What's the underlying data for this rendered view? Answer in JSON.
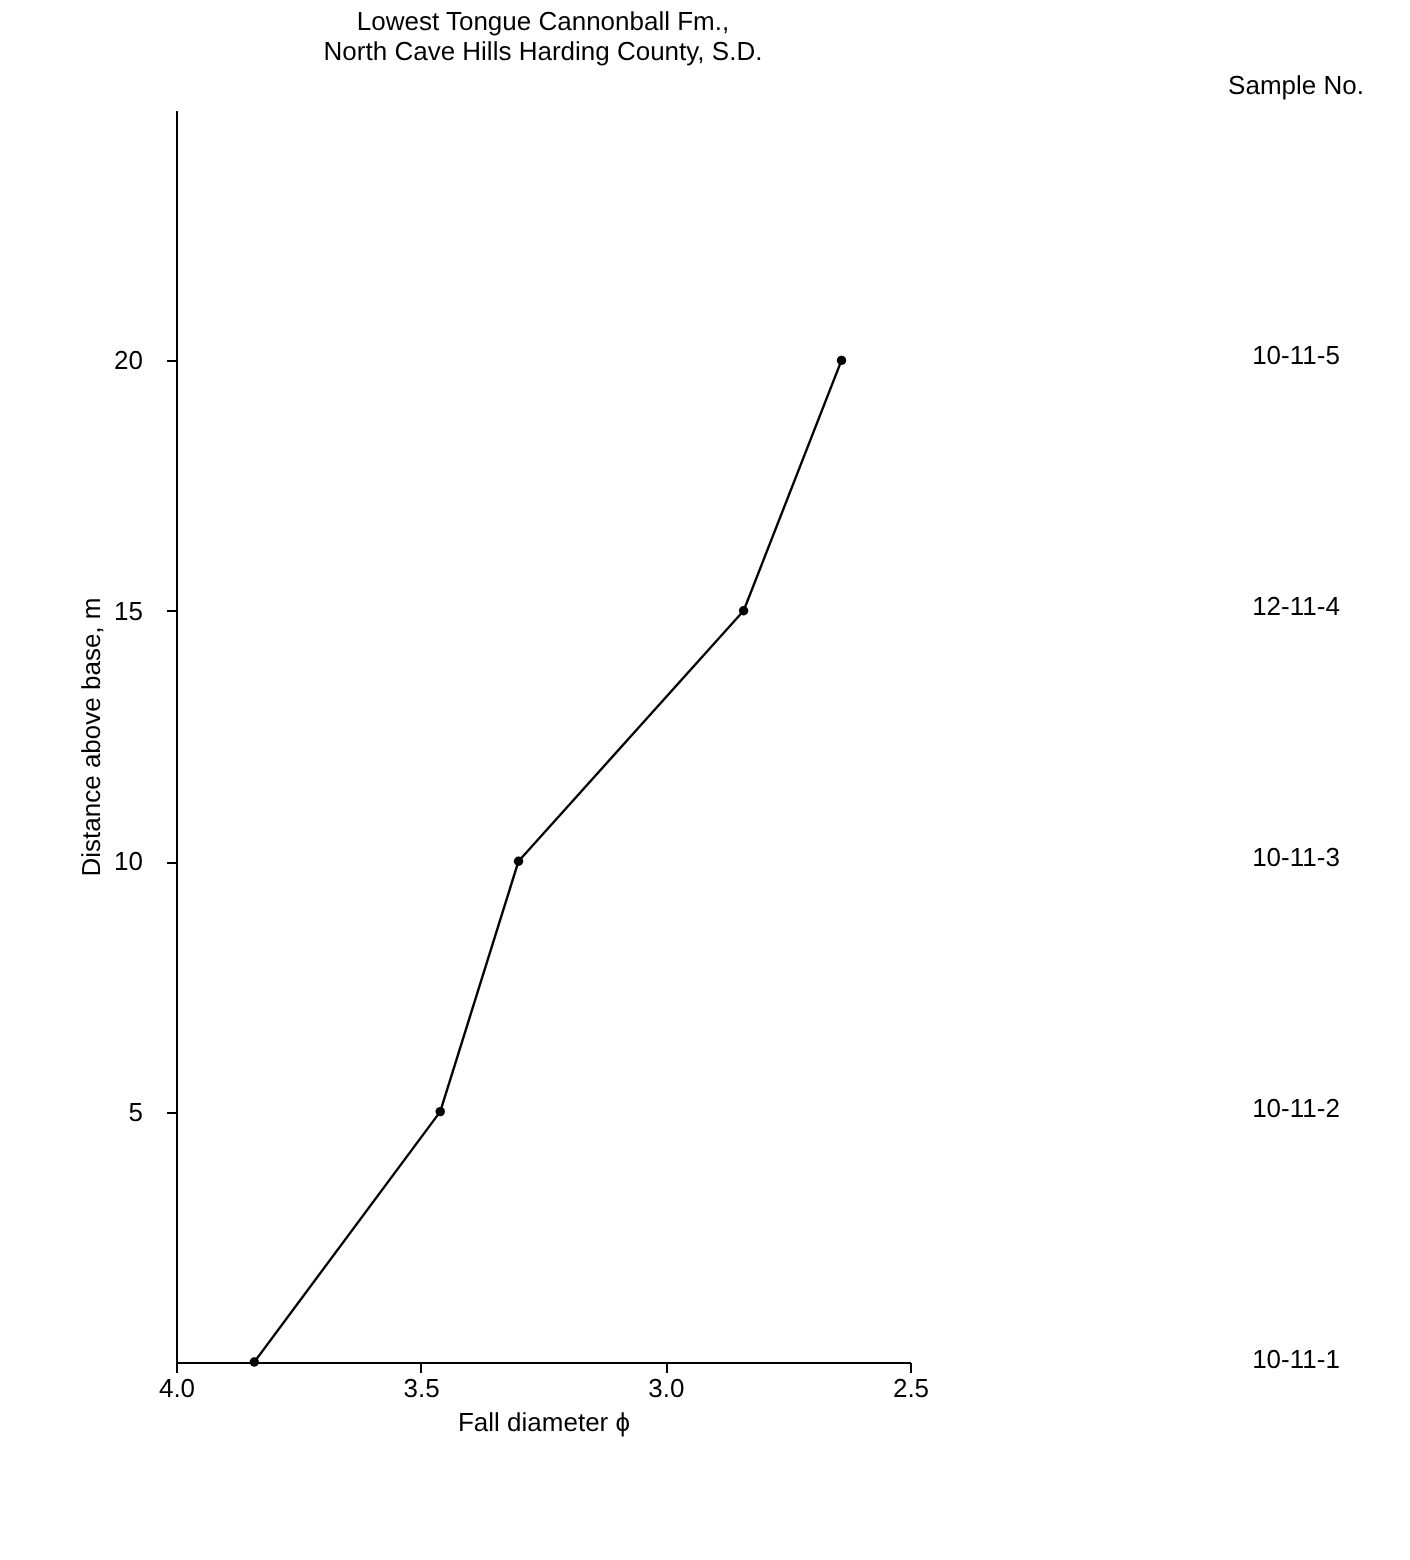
{
  "chart_data": {
    "type": "line",
    "title": "Lowest Tongue Cannonball Fm.,",
    "subtitle": "North Cave Hills Harding County, S.D.",
    "xlabel": "Fall diameter ϕ",
    "ylabel": "Distance above base, m",
    "x": [
      3.84,
      3.46,
      3.3,
      2.84,
      2.64
    ],
    "values": [
      0,
      5,
      10,
      15,
      20
    ],
    "color": "#000000",
    "marker": "circle",
    "xlim": [
      4.0,
      2.5
    ],
    "xticks": [
      {
        "value": 4,
        "label": "4.0"
      },
      3.5,
      {
        "value": 3,
        "label": "3.0"
      },
      2.5
    ],
    "ylim": [
      0,
      25
    ],
    "yticks": [
      5,
      10,
      15,
      20
    ],
    "grid": false,
    "annotations": [
      "Sample No.",
      "10-11-5",
      "12-11-4",
      "10-11-3",
      "10-11-2",
      "10-11-1"
    ]
  }
}
